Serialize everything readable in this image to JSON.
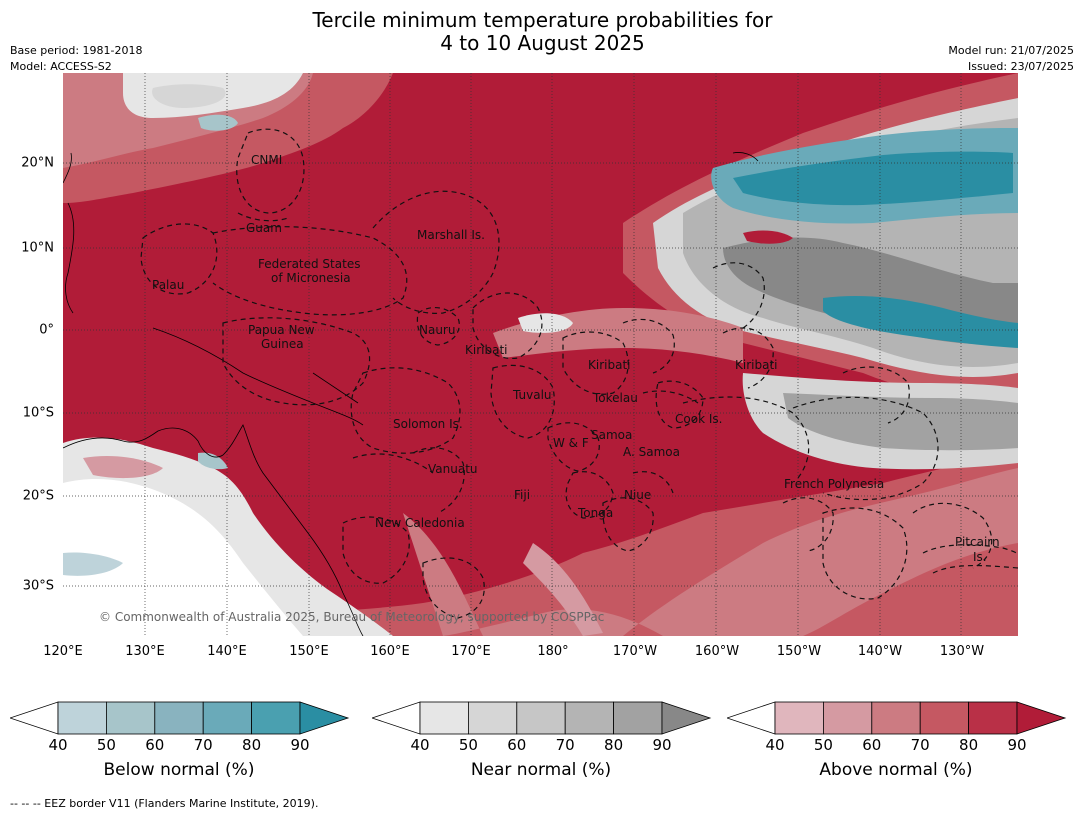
{
  "title": {
    "line1": "Tercile minimum temperature probabilities for",
    "line2": "4 to 10 August 2025"
  },
  "meta": {
    "base_period": "Base period: 1981-2018",
    "model": "Model: ACCESS-S2",
    "model_run": "Model run: 21/07/2025",
    "issued": "Issued: 23/07/2025"
  },
  "map": {
    "longitude_labels": [
      "120°E",
      "130°E",
      "140°E",
      "150°E",
      "160°E",
      "170°E",
      "180°",
      "170°W",
      "160°W",
      "150°W",
      "140°W",
      "130°W"
    ],
    "latitude_labels": [
      "20°N",
      "10°N",
      "0°",
      "10°S",
      "20°S",
      "30°S"
    ],
    "eez_labels": {
      "cnmi": "CNMI",
      "guam": "Guam",
      "marshall": "Marshall Is.",
      "fsm_1": "Federated States",
      "fsm_2": "of Micronesia",
      "palau": "Palau",
      "png_1": "Papua New",
      "png_2": "Guinea",
      "nauru": "Nauru",
      "kiribati_w": "Kiribati",
      "kiribati_c": "Kiribati",
      "kiribati_e": "Kiribati",
      "tuvalu": "Tuvalu",
      "tokelau": "Tokelau",
      "cook": "Cook Is.",
      "solomon": "Solomon Is.",
      "wf": "W & F",
      "samoa": "Samoa",
      "asamoa": "A. Samoa",
      "vanuatu": "Vanuatu",
      "fiji": "Fiji",
      "niue": "Niue",
      "fp": "French Polynesia",
      "tonga": "Tonga",
      "newcal": "New Caledonia",
      "pitcairn_1": "Pitcairn",
      "pitcairn_2": "Is."
    },
    "copyright": "© Commonwealth of Australia 2025, Bureau of Meteorology, supported by COSPPac"
  },
  "colorbars": [
    {
      "label": "Below normal (%)",
      "ticks": [
        "40",
        "50",
        "60",
        "70",
        "80",
        "90"
      ],
      "colors": [
        "#ffffff",
        "#bed3da",
        "#a7c5ca",
        "#89b3bf",
        "#6aaab9",
        "#4aa0b0",
        "#2a8ea3"
      ]
    },
    {
      "label": "Near normal (%)",
      "ticks": [
        "40",
        "50",
        "60",
        "70",
        "80",
        "90"
      ],
      "colors": [
        "#ffffff",
        "#e6e6e6",
        "#d6d6d6",
        "#c6c6c6",
        "#b4b4b4",
        "#a2a2a2",
        "#888888"
      ]
    },
    {
      "label": "Above normal (%)",
      "ticks": [
        "40",
        "50",
        "60",
        "70",
        "80",
        "90"
      ],
      "colors": [
        "#ffffff",
        "#e0b6bd",
        "#d59aa2",
        "#cc7b82",
        "#c55862",
        "#b93047",
        "#b11c38"
      ]
    }
  ],
  "footnote": "--  --  -- EEZ border V11 (Flanders Marine Institute, 2019)."
}
